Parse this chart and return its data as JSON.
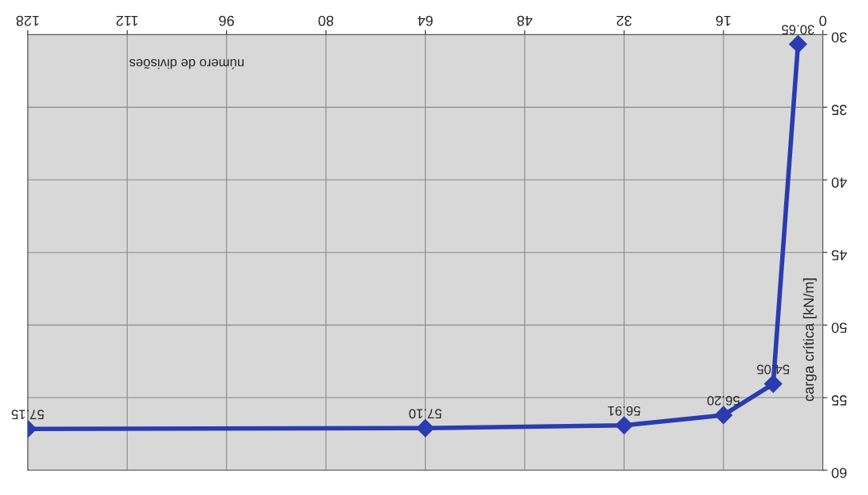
{
  "chart_data": {
    "type": "line",
    "xlabel": "número de divisões",
    "ylabel": "carga crítica [kN/m]",
    "x": [
      4,
      8,
      16,
      32,
      64,
      128
    ],
    "series": [
      {
        "color": "#2b3bb0",
        "values": [
          30.65,
          54.05,
          56.2,
          56.91,
          57.1,
          57.15
        ],
        "value_labels": [
          "30.65",
          "54.05",
          "56.20",
          "56.91",
          "57.10",
          "57.15"
        ]
      }
    ],
    "xlim": [
      128,
      0
    ],
    "xticks": [
      0,
      16,
      32,
      48,
      64,
      80,
      96,
      112,
      128
    ],
    "ylim": [
      60,
      30
    ],
    "yticks": [
      30,
      35,
      40,
      45,
      50,
      55,
      60
    ],
    "grid": true,
    "marker": "diamond",
    "line_style": "solid"
  }
}
